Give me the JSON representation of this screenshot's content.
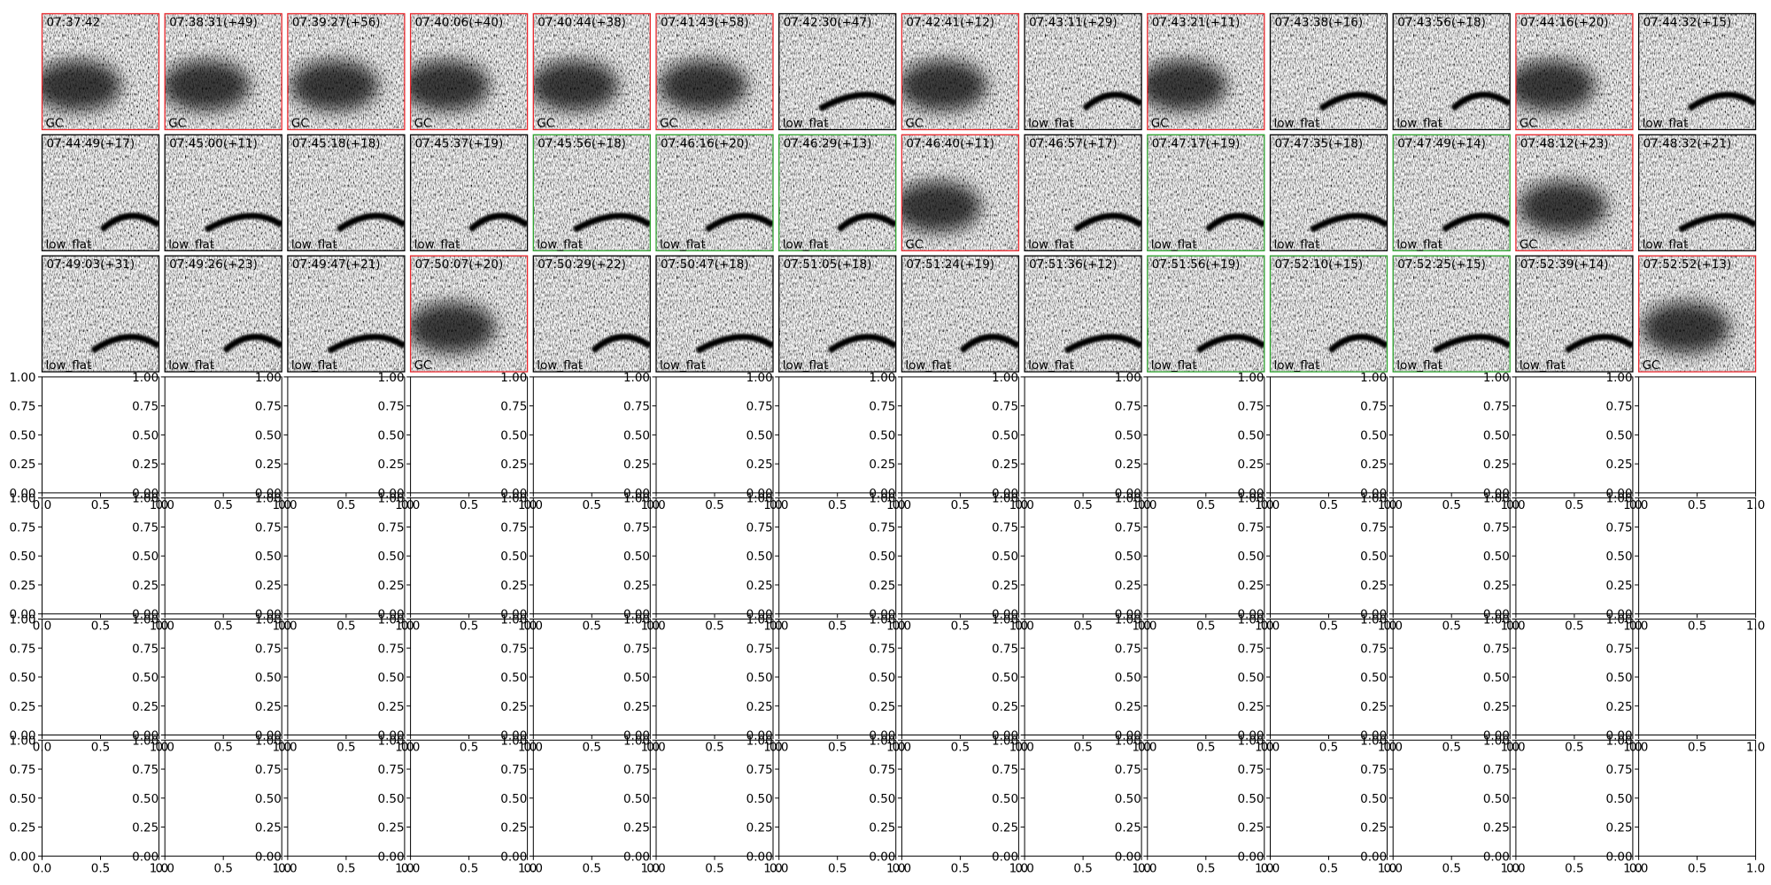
{
  "spectrograms": [
    {
      "title": "07:37:42",
      "label": "GC",
      "color": "#e8262b"
    },
    {
      "title": "07:38:31(+49)",
      "label": "GC",
      "color": "#e8262b"
    },
    {
      "title": "07:39:27(+56)",
      "label": "GC",
      "color": "#e8262b"
    },
    {
      "title": "07:40:06(+40)",
      "label": "GC",
      "color": "#e8262b"
    },
    {
      "title": "07:40:44(+38)",
      "label": "GC",
      "color": "#e8262b"
    },
    {
      "title": "07:41:43(+58)",
      "label": "GC",
      "color": "#e8262b"
    },
    {
      "title": "07:42:30(+47)",
      "label": "low_flat",
      "color": "#000000"
    },
    {
      "title": "07:42:41(+12)",
      "label": "GC",
      "color": "#e8262b"
    },
    {
      "title": "07:43:11(+29)",
      "label": "low_flat",
      "color": "#000000"
    },
    {
      "title": "07:43:21(+11)",
      "label": "GC",
      "color": "#e8262b"
    },
    {
      "title": "07:43:38(+16)",
      "label": "low_flat",
      "color": "#000000"
    },
    {
      "title": "07:43:56(+18)",
      "label": "low_flat",
      "color": "#000000"
    },
    {
      "title": "07:44:16(+20)",
      "label": "GC",
      "color": "#e8262b"
    },
    {
      "title": "07:44:32(+15)",
      "label": "low_flat",
      "color": "#000000"
    },
    {
      "title": "07:44:49(+17)",
      "label": "low_flat",
      "color": "#000000"
    },
    {
      "title": "07:45:00(+11)",
      "label": "low_flat",
      "color": "#000000"
    },
    {
      "title": "07:45:18(+18)",
      "label": "low_flat",
      "color": "#000000"
    },
    {
      "title": "07:45:37(+19)",
      "label": "low_flat",
      "color": "#000000"
    },
    {
      "title": "07:45:56(+18)",
      "label": "low_flat",
      "color": "#2ca02c"
    },
    {
      "title": "07:46:16(+20)",
      "label": "low_flat",
      "color": "#2ca02c"
    },
    {
      "title": "07:46:29(+13)",
      "label": "low_flat",
      "color": "#2ca02c"
    },
    {
      "title": "07:46:40(+11)",
      "label": "GC",
      "color": "#e8262b"
    },
    {
      "title": "07:46:57(+17)",
      "label": "low_flat",
      "color": "#000000"
    },
    {
      "title": "07:47:17(+19)",
      "label": "low_flat",
      "color": "#2ca02c"
    },
    {
      "title": "07:47:35(+18)",
      "label": "low_flat",
      "color": "#000000"
    },
    {
      "title": "07:47:49(+14)",
      "label": "low_flat",
      "color": "#2ca02c"
    },
    {
      "title": "07:48:12(+23)",
      "label": "GC",
      "color": "#e8262b"
    },
    {
      "title": "07:48:32(+21)",
      "label": "low_flat",
      "color": "#000000"
    },
    {
      "title": "07:49:03(+31)",
      "label": "low_flat",
      "color": "#000000"
    },
    {
      "title": "07:49:26(+23)",
      "label": "low_flat",
      "color": "#000000"
    },
    {
      "title": "07:49:47(+21)",
      "label": "low_flat",
      "color": "#000000"
    },
    {
      "title": "07:50:07(+20)",
      "label": "GC",
      "color": "#e8262b"
    },
    {
      "title": "07:50:29(+22)",
      "label": "low_flat",
      "color": "#000000"
    },
    {
      "title": "07:50:47(+18)",
      "label": "low_flat",
      "color": "#000000"
    },
    {
      "title": "07:51:05(+18)",
      "label": "low_flat",
      "color": "#000000"
    },
    {
      "title": "07:51:24(+19)",
      "label": "low_flat",
      "color": "#000000"
    },
    {
      "title": "07:51:36(+12)",
      "label": "low_flat",
      "color": "#000000"
    },
    {
      "title": "07:51:56(+19)",
      "label": "low_flat",
      "color": "#2ca02c"
    },
    {
      "title": "07:52:10(+15)",
      "label": "low_flat",
      "color": "#2ca02c"
    },
    {
      "title": "07:52:25(+15)",
      "label": "low_flat",
      "color": "#2ca02c"
    },
    {
      "title": "07:52:39(+14)",
      "label": "low_flat",
      "color": "#000000"
    },
    {
      "title": "07:52:52(+13)",
      "label": "GC",
      "color": "#e8262b"
    }
  ],
  "empty_axes": {
    "xlim": [
      0,
      1
    ],
    "ylim": [
      0,
      1
    ],
    "xticks": [
      {
        "value": 0,
        "label": "0.0"
      },
      {
        "value": 0.5,
        "label": "0.5"
      },
      {
        "value": 1,
        "label": "1.0"
      }
    ],
    "yticks": [
      {
        "value": 0,
        "label": "0.00"
      },
      {
        "value": 0.25,
        "label": "0.25"
      },
      {
        "value": 0.5,
        "label": "0.50"
      },
      {
        "value": 0.75,
        "label": "0.75"
      },
      {
        "value": 1,
        "label": "1.00"
      }
    ]
  }
}
